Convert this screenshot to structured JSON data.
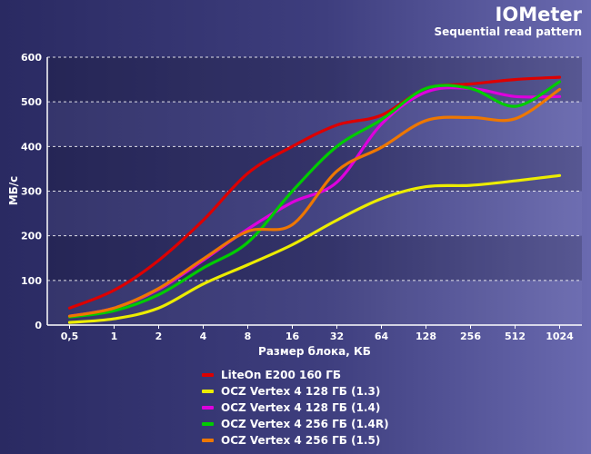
{
  "header": {
    "title": "IOMeter",
    "subtitle": "Sequential read pattern"
  },
  "chart_data": {
    "type": "line",
    "title": "IOMeter",
    "subtitle": "Sequential read pattern",
    "xlabel": "Размер блока, КБ",
    "ylabel": "МБ/с",
    "categories": [
      "0,5",
      "1",
      "2",
      "4",
      "8",
      "16",
      "32",
      "64",
      "128",
      "256",
      "512",
      "1024"
    ],
    "ylim": [
      0,
      600
    ],
    "yticks": [
      "0",
      "100",
      "200",
      "300",
      "400",
      "500",
      "600"
    ],
    "grid": true,
    "legend_position": "bottom",
    "series": [
      {
        "name": "LiteOn E200 160 ГБ",
        "color": "#dd0000",
        "values": [
          38,
          78,
          145,
          235,
          340,
          400,
          448,
          470,
          530,
          540,
          550,
          555
        ]
      },
      {
        "name": "OCZ Vertex 4 128 ГБ (1.3)",
        "color": "#ecec00",
        "values": [
          6,
          14,
          38,
          92,
          135,
          180,
          235,
          283,
          310,
          313,
          323,
          335
        ]
      },
      {
        "name": "OCZ Vertex 4 128 ГБ (1.4)",
        "color": "#dd00dd",
        "values": [
          20,
          38,
          80,
          145,
          215,
          275,
          320,
          450,
          522,
          530,
          512,
          512
        ]
      },
      {
        "name": "OCZ Vertex 4 256 ГБ (1.4R)",
        "color": "#00cc00",
        "values": [
          18,
          32,
          68,
          128,
          185,
          300,
          400,
          460,
          530,
          530,
          490,
          545
        ]
      },
      {
        "name": "OCZ Vertex 4 256 ГБ (1.5)",
        "color": "#ee7700",
        "values": [
          20,
          38,
          82,
          148,
          210,
          225,
          345,
          398,
          458,
          465,
          462,
          528
        ]
      }
    ]
  }
}
